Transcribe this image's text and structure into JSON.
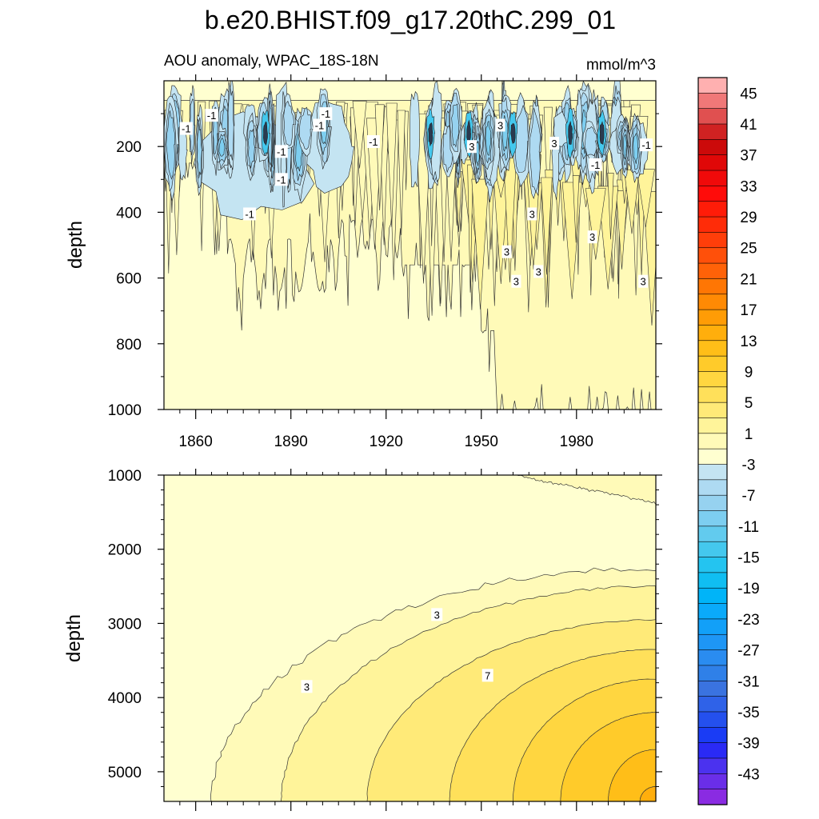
{
  "title": "b.e20.BHIST.f09_g17.20thC.299_01",
  "colors": {
    "c_m45": "#8a2be2",
    "c_m43": "#6a2ee8",
    "c_m41": "#4b32ef",
    "c_m39": "#2a2af5",
    "c_m37": "#1a3cf5",
    "c_m35": "#2450ee",
    "c_m33": "#2f62e8",
    "c_m31": "#3a73e0",
    "c_m29": "#2f80e8",
    "c_m27": "#2a8cf0",
    "c_m25": "#1e96f5",
    "c_m23": "#12a0f8",
    "c_m21": "#0aaafa",
    "c_m19": "#00b4f8",
    "c_m17": "#10bef2",
    "c_m15": "#24c4f0",
    "c_m13": "#44c8ee",
    "c_m11": "#62cbee",
    "c_m9": "#7dcef0",
    "c_m7": "#96d2f0",
    "c_m5": "#aedaf2",
    "c_m3": "#c4e4f2",
    "c_m1": "#ffffd0",
    "c_1": "#fffab8",
    "c_3": "#fff49a",
    "c_5": "#ffea78",
    "c_7": "#ffe05a",
    "c_9": "#ffd640",
    "c_11": "#ffcb2a",
    "c_13": "#ffbe18",
    "c_15": "#ffae0c",
    "c_17": "#ff9c06",
    "c_19": "#ff8a04",
    "c_21": "#ff7604",
    "c_23": "#ff6208",
    "c_25": "#ff500a",
    "c_27": "#ff3e0a",
    "c_29": "#ff2c08",
    "c_31": "#ff1c08",
    "c_33": "#ff0c0a",
    "c_35": "#f00a0a",
    "c_37": "#e00808",
    "c_39": "#cc0a0a",
    "c_41": "#d02222",
    "c_43": "#e05050",
    "c_45": "#f07878",
    "c_47": "#ffb0b0"
  },
  "chart_data": [
    {
      "type": "heatmap",
      "panel": "top",
      "subtitle_left": "AOU anomaly, WPAC_18S-18N",
      "subtitle_right": "mmol/m^3",
      "xlabel": "",
      "ylabel": "depth",
      "xlim": [
        1850,
        2005
      ],
      "ylim": [
        1000,
        0
      ],
      "x_ticks": [
        1860,
        1890,
        1920,
        1950,
        1980
      ],
      "x_tick_labels": [
        "1860",
        "1890",
        "1920",
        "1950",
        "1980"
      ],
      "y_ticks": [
        200,
        400,
        600,
        800,
        1000
      ],
      "y_tick_labels": [
        "200",
        "400",
        "600",
        "800",
        "1000"
      ],
      "contour_labels": [
        {
          "text": "-1",
          "x": 1865,
          "y": 105
        },
        {
          "text": "-1",
          "x": 1857,
          "y": 145
        },
        {
          "text": "-1",
          "x": 1901,
          "y": 100
        },
        {
          "text": "-1",
          "x": 1899,
          "y": 135
        },
        {
          "text": "-1",
          "x": 1916,
          "y": 185
        },
        {
          "text": "-1",
          "x": 1887,
          "y": 215
        },
        {
          "text": "-1",
          "x": 1887,
          "y": 300
        },
        {
          "text": "-1",
          "x": 1877,
          "y": 405
        },
        {
          "text": "-1",
          "x": 1986,
          "y": 255
        },
        {
          "text": "-1",
          "x": 2002,
          "y": 195
        },
        {
          "text": "3",
          "x": 1956,
          "y": 135
        },
        {
          "text": "3",
          "x": 1947,
          "y": 200
        },
        {
          "text": "3",
          "x": 1973,
          "y": 190
        },
        {
          "text": "3",
          "x": 1966,
          "y": 405
        },
        {
          "text": "3",
          "x": 1985,
          "y": 475
        },
        {
          "text": "3",
          "x": 1958,
          "y": 520
        },
        {
          "text": "3",
          "x": 1968,
          "y": 580
        },
        {
          "text": "3",
          "x": 1961,
          "y": 610
        },
        {
          "text": "3",
          "x": 2001,
          "y": 610
        }
      ]
    },
    {
      "type": "heatmap",
      "panel": "bottom",
      "xlabel": "",
      "ylabel": "depth",
      "xlim": [
        1850,
        2005
      ],
      "ylim": [
        5400,
        1000
      ],
      "y_ticks": [
        1000,
        2000,
        3000,
        4000,
        5000
      ],
      "y_tick_labels": [
        "1000",
        "2000",
        "3000",
        "4000",
        "5000"
      ],
      "contour_labels": [
        {
          "text": "3",
          "x": 1936,
          "y": 2880
        },
        {
          "text": "3",
          "x": 1895,
          "y": 3850
        },
        {
          "text": "7",
          "x": 1952,
          "y": 3700
        }
      ]
    },
    {
      "type": "colorbar",
      "levels": [
        -45,
        -43,
        -41,
        -39,
        -37,
        -35,
        -33,
        -31,
        -29,
        -27,
        -25,
        -23,
        -21,
        -19,
        -17,
        -15,
        -13,
        -11,
        -9,
        -7,
        -5,
        -3,
        -1,
        1,
        3,
        5,
        7,
        9,
        11,
        13,
        15,
        17,
        19,
        21,
        23,
        25,
        27,
        29,
        31,
        33,
        35,
        37,
        39,
        41,
        43,
        45
      ],
      "tick_labels": [
        "45",
        "41",
        "37",
        "33",
        "29",
        "25",
        "21",
        "17",
        "13",
        "9",
        "5",
        "1",
        "-3",
        "-7",
        "-11",
        "-15",
        "-19",
        "-23",
        "-27",
        "-31",
        "-35",
        "-39",
        "-43"
      ]
    }
  ]
}
